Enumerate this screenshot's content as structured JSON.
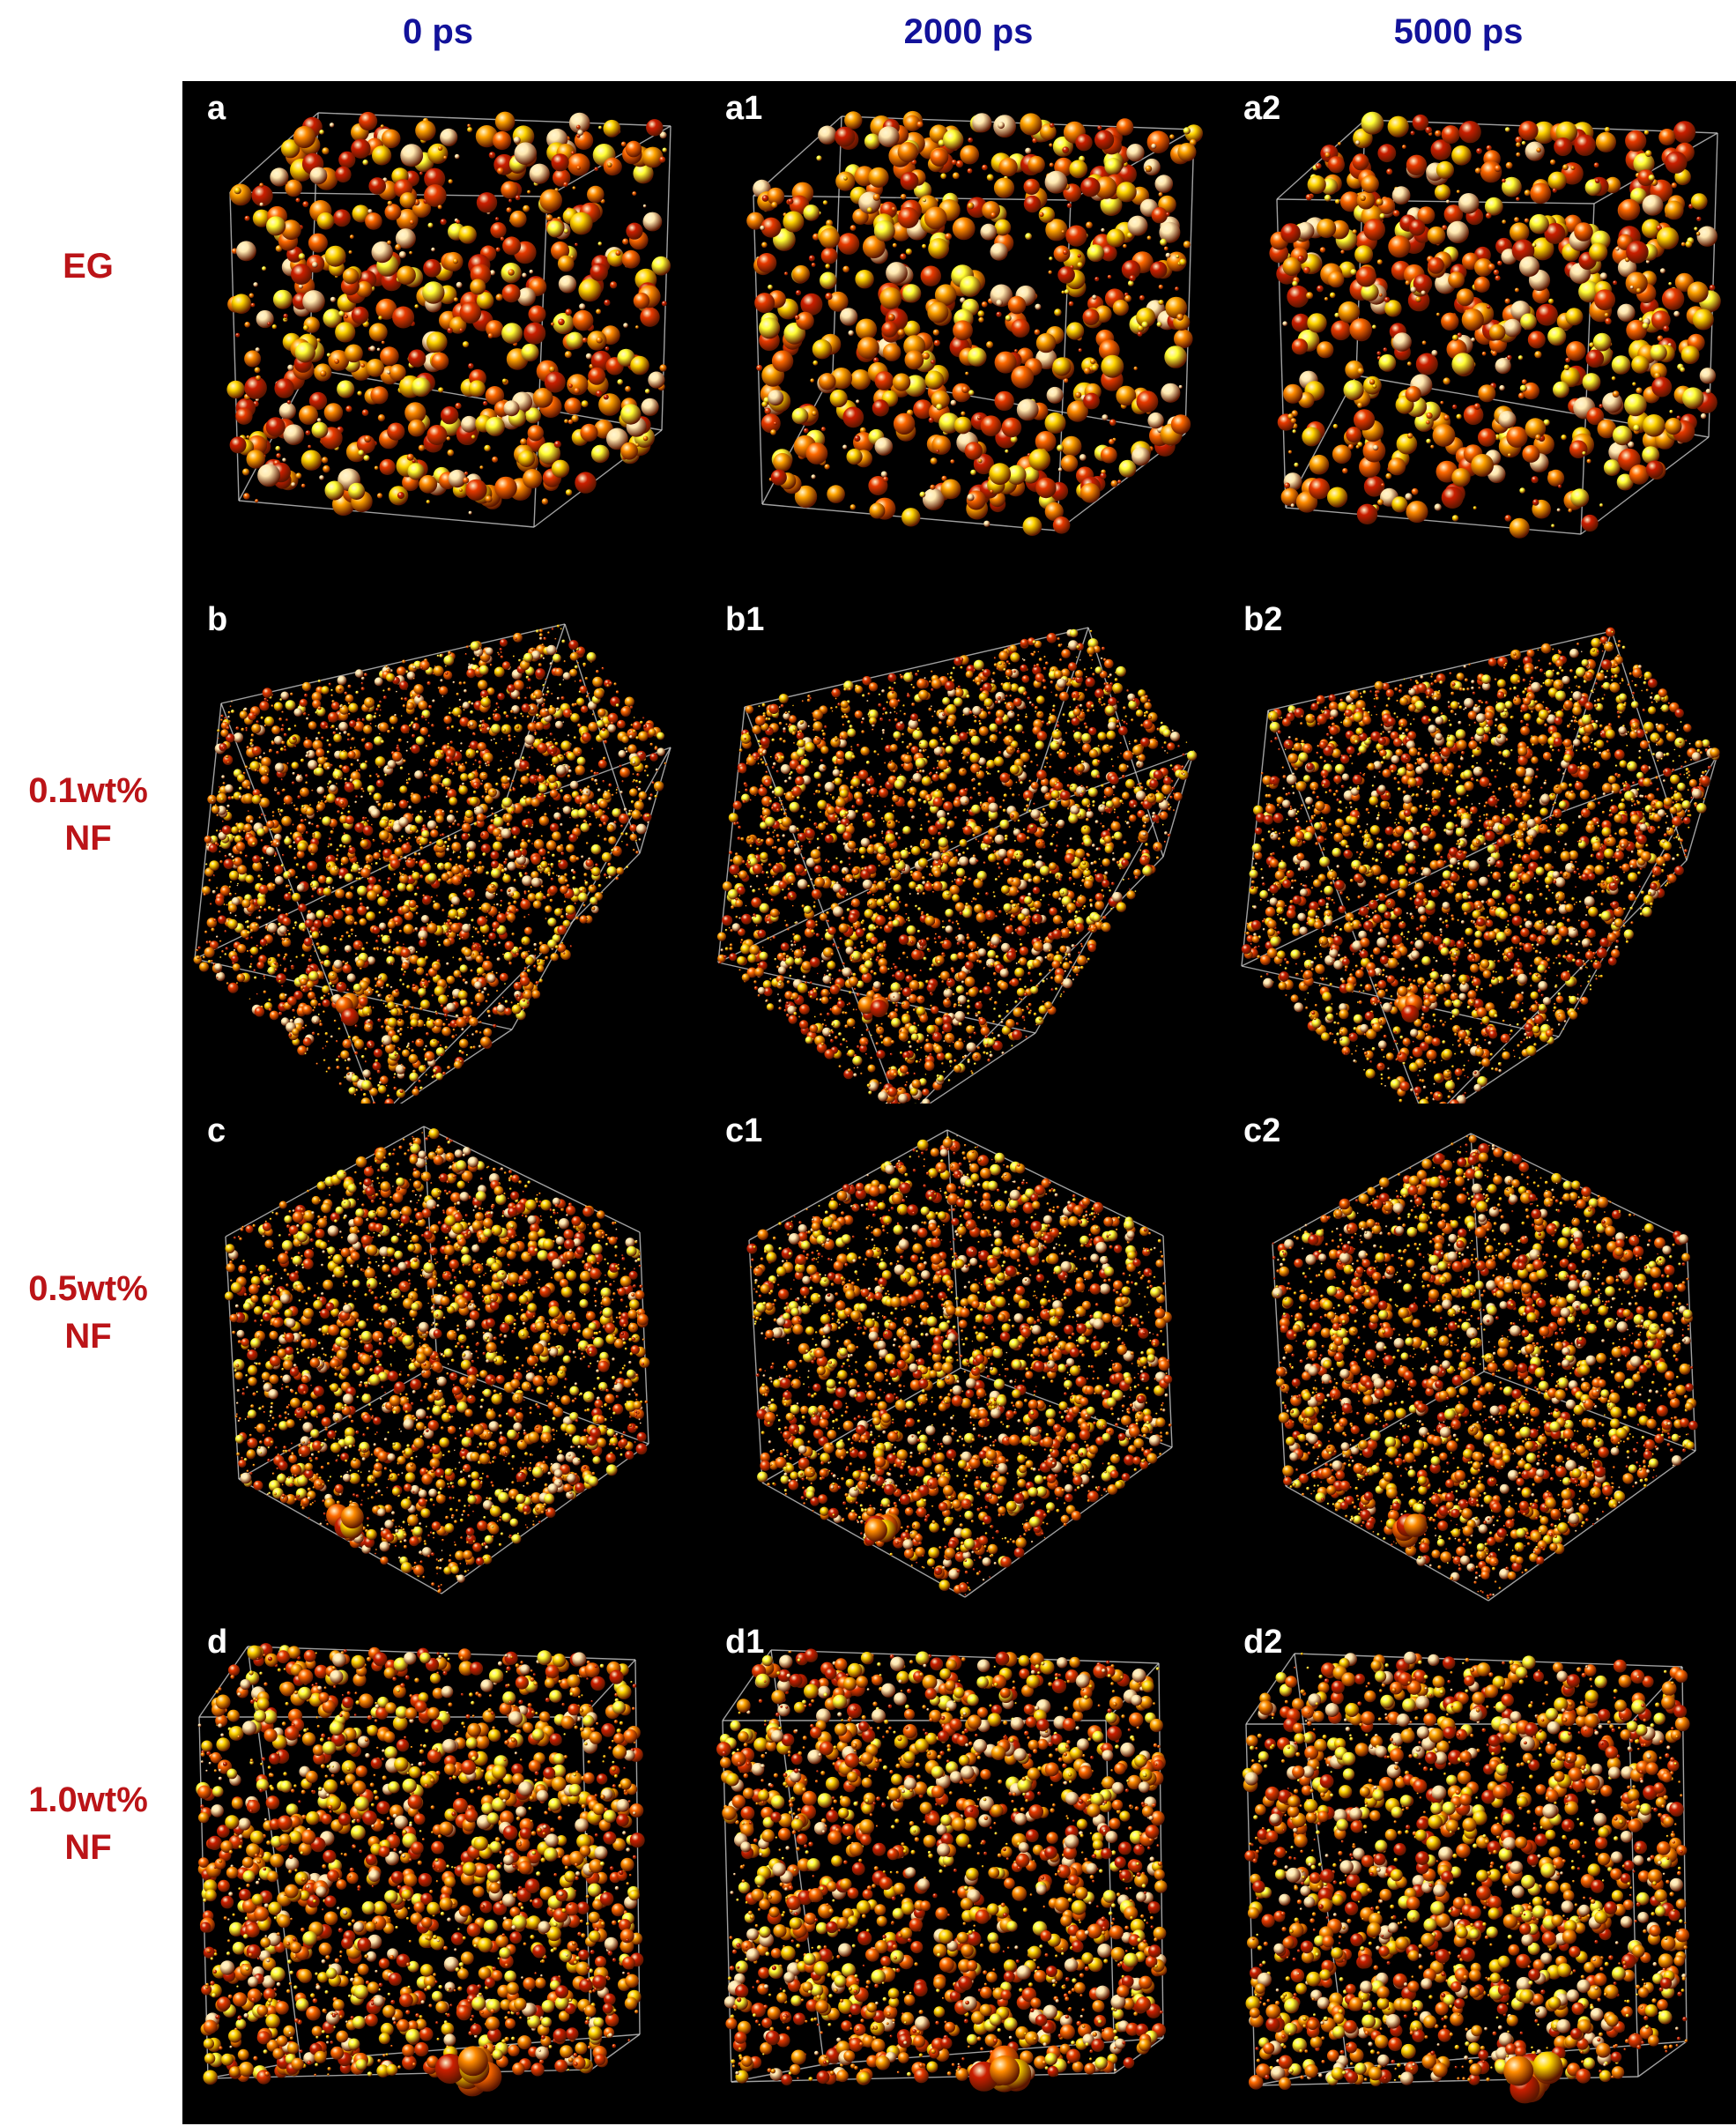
{
  "columns": [
    {
      "label": "0 ps"
    },
    {
      "label": "2000 ps"
    },
    {
      "label": "5000 ps"
    }
  ],
  "rows": [
    {
      "line1": "EG",
      "line2": ""
    },
    {
      "line1": "0.1wt%",
      "line2": "NF"
    },
    {
      "line1": "0.5wt%",
      "line2": "NF"
    },
    {
      "line1": "1.0wt%",
      "line2": "NF"
    }
  ],
  "panels": [
    [
      "a",
      "a1",
      "a2"
    ],
    [
      "b",
      "b1",
      "b2"
    ],
    [
      "c",
      "c1",
      "c2"
    ],
    [
      "d",
      "d1",
      "d2"
    ]
  ],
  "colors": {
    "column_header": "#12129a",
    "row_header": "#bb1418",
    "panel_background": "#000000",
    "box_edges": "#c8c8c8",
    "atoms": [
      "#ff8c00",
      "#ff6a00",
      "#ffa500",
      "#ffd700",
      "#ffff33",
      "#cc1f00",
      "#e83a00",
      "#ffe8b0"
    ]
  }
}
